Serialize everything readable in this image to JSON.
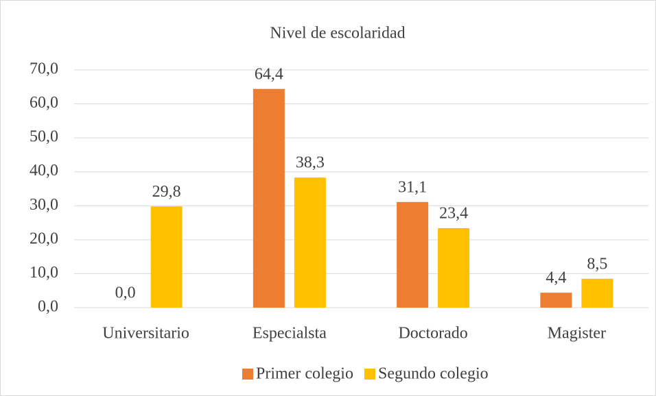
{
  "chart_data": {
    "type": "bar",
    "title": "Nivel de escolaridad",
    "categories": [
      "Universitario",
      "Especialsta",
      "Doctorado",
      "Magister"
    ],
    "series": [
      {
        "name": "Primer colegio",
        "color": "#ed7d31",
        "values": [
          0.0,
          64.4,
          31.1,
          4.4
        ],
        "value_labels": [
          "0,0",
          "64,4",
          "31,1",
          "4,4"
        ]
      },
      {
        "name": "Segundo colegio",
        "color": "#ffc000",
        "values": [
          29.8,
          38.3,
          23.4,
          8.5
        ],
        "value_labels": [
          "29,8",
          "38,3",
          "23,4",
          "8,5"
        ]
      }
    ],
    "ylim": [
      0,
      70
    ],
    "yticks": [
      {
        "value": 0,
        "label": "0,0"
      },
      {
        "value": 10,
        "label": "10,0"
      },
      {
        "value": 20,
        "label": "20,0"
      },
      {
        "value": 30,
        "label": "30,0"
      },
      {
        "value": 40,
        "label": "40,0"
      },
      {
        "value": 50,
        "label": "50,0"
      },
      {
        "value": 60,
        "label": "60,0"
      },
      {
        "value": 70,
        "label": "70,0"
      }
    ],
    "grid": true,
    "legend": "bottom"
  }
}
